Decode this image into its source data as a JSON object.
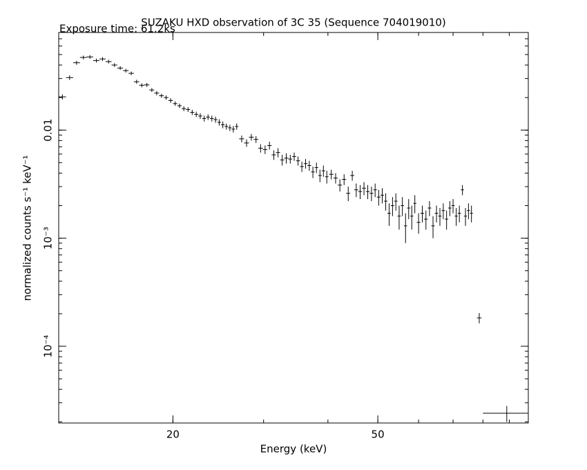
{
  "chart_data": {
    "type": "errorbar",
    "title": "SUZAKU HXD observation of 3C 35 (Sequence 704019010)",
    "subtitle": "Exposure time: 61.2ks",
    "x_label": "Energy (keV)",
    "y_label": "normalized counts s⁻¹ keV⁻¹",
    "x_scale": "log",
    "y_scale": "log",
    "xlim": [
      12,
      98
    ],
    "ylim": [
      1.95e-05,
      0.08
    ],
    "xticks": [
      20,
      50
    ],
    "yticks": [
      0.01,
      {
        "value": 0.001,
        "label": "10⁻³"
      },
      {
        "value": 0.0001,
        "label": "10⁻⁴"
      }
    ],
    "color": "#000000",
    "x": [
      12.2,
      12.6,
      13.0,
      13.4,
      13.8,
      14.2,
      14.6,
      15.0,
      15.4,
      15.8,
      16.2,
      16.6,
      17.0,
      17.4,
      17.8,
      18.2,
      18.6,
      19.0,
      19.4,
      19.8,
      20.2,
      20.6,
      21.0,
      21.4,
      21.8,
      22.2,
      22.6,
      23.0,
      23.4,
      23.8,
      24.2,
      24.6,
      25.0,
      25.4,
      25.8,
      26.2,
      26.6,
      27.2,
      27.8,
      28.4,
      29.0,
      29.6,
      30.2,
      30.8,
      31.4,
      32.0,
      32.6,
      33.2,
      33.8,
      34.4,
      35.0,
      35.6,
      36.2,
      36.8,
      37.4,
      38.0,
      38.6,
      39.2,
      39.8,
      40.6,
      41.4,
      42.2,
      43.0,
      43.8,
      44.6,
      45.4,
      46.2,
      47.0,
      47.8,
      48.6,
      49.4,
      50.2,
      51.0,
      51.8,
      52.6,
      53.4,
      54.2,
      55.0,
      55.8,
      56.6,
      57.4,
      58.2,
      59.0,
      60,
      61,
      62,
      63,
      64,
      65,
      66,
      67,
      68,
      69,
      70,
      71,
      72,
      73,
      74,
      75,
      76,
      78.7,
      89
    ],
    "values": [
      0.0203,
      0.0306,
      0.042,
      0.047,
      0.0475,
      0.044,
      0.0455,
      0.043,
      0.04,
      0.0375,
      0.0355,
      0.0335,
      0.028,
      0.026,
      0.0262,
      0.0235,
      0.022,
      0.0208,
      0.02,
      0.0188,
      0.0176,
      0.0168,
      0.0158,
      0.0155,
      0.0146,
      0.014,
      0.0135,
      0.0128,
      0.0132,
      0.0128,
      0.0125,
      0.0118,
      0.0112,
      0.0108,
      0.0105,
      0.0102,
      0.0108,
      0.0083,
      0.0076,
      0.0086,
      0.0082,
      0.0068,
      0.0066,
      0.0072,
      0.0059,
      0.0062,
      0.0053,
      0.0055,
      0.0054,
      0.0057,
      0.0052,
      0.0046,
      0.0049,
      0.0047,
      0.0041,
      0.0045,
      0.0038,
      0.0042,
      0.0037,
      0.0039,
      0.0036,
      0.0031,
      0.0035,
      0.0026,
      0.0038,
      0.0028,
      0.0027,
      0.0029,
      0.0027,
      0.0026,
      0.0028,
      0.0024,
      0.0025,
      0.0022,
      0.0017,
      0.002,
      0.0022,
      0.0016,
      0.002,
      0.0013,
      0.0019,
      0.0016,
      0.0021,
      0.0014,
      0.0017,
      0.0015,
      0.0019,
      0.0013,
      0.0017,
      0.0016,
      0.0018,
      0.0015,
      0.0019,
      0.002,
      0.0016,
      0.0017,
      0.0028,
      0.0016,
      0.0018,
      0.0017,
      0.000183,
      2.4e-05
    ],
    "xerr": [
      0.2,
      0.2,
      0.2,
      0.2,
      0.2,
      0.2,
      0.2,
      0.2,
      0.2,
      0.2,
      0.2,
      0.2,
      0.2,
      0.2,
      0.2,
      0.2,
      0.2,
      0.2,
      0.2,
      0.2,
      0.2,
      0.2,
      0.2,
      0.2,
      0.2,
      0.2,
      0.2,
      0.2,
      0.2,
      0.2,
      0.2,
      0.2,
      0.2,
      0.2,
      0.2,
      0.2,
      0.2,
      0.3,
      0.3,
      0.3,
      0.3,
      0.3,
      0.3,
      0.3,
      0.3,
      0.3,
      0.3,
      0.3,
      0.3,
      0.3,
      0.3,
      0.3,
      0.3,
      0.3,
      0.3,
      0.3,
      0.3,
      0.3,
      0.3,
      0.4,
      0.4,
      0.4,
      0.4,
      0.4,
      0.4,
      0.4,
      0.4,
      0.4,
      0.4,
      0.4,
      0.4,
      0.4,
      0.4,
      0.4,
      0.4,
      0.4,
      0.4,
      0.4,
      0.4,
      0.4,
      0.4,
      0.4,
      0.4,
      0.5,
      0.5,
      0.5,
      0.5,
      0.5,
      0.5,
      0.5,
      0.5,
      0.5,
      0.5,
      0.5,
      0.5,
      0.5,
      0.5,
      0.5,
      0.5,
      0.5,
      0.8,
      9
    ],
    "yerr": [
      0.0011,
      0.0015,
      0.0018,
      0.0019,
      0.0019,
      0.0018,
      0.0018,
      0.0017,
      0.0016,
      0.0015,
      0.0014,
      0.0013,
      0.0012,
      0.0011,
      0.0011,
      0.001,
      0.001,
      0.0009,
      0.0009,
      0.0009,
      0.0008,
      0.0008,
      0.0008,
      0.0008,
      0.0008,
      0.0008,
      0.0008,
      0.0008,
      0.0008,
      0.0008,
      0.0008,
      0.0008,
      0.0008,
      0.0007,
      0.0007,
      0.0007,
      0.0007,
      0.0006,
      0.0006,
      0.0006,
      0.0006,
      0.0006,
      0.0006,
      0.0006,
      0.0006,
      0.0006,
      0.0006,
      0.0006,
      0.0005,
      0.0005,
      0.0005,
      0.0005,
      0.0005,
      0.0005,
      0.0005,
      0.0005,
      0.0005,
      0.0005,
      0.0005,
      0.0004,
      0.0004,
      0.0004,
      0.0004,
      0.0004,
      0.0004,
      0.0004,
      0.0004,
      0.0004,
      0.0004,
      0.0004,
      0.0004,
      0.0004,
      0.0004,
      0.0004,
      0.0004,
      0.0004,
      0.0004,
      0.0004,
      0.0004,
      0.0004,
      0.0004,
      0.0004,
      0.0004,
      0.0003,
      0.0003,
      0.0003,
      0.0003,
      0.0003,
      0.0003,
      0.0003,
      0.0003,
      0.0003,
      0.0003,
      0.0003,
      0.0003,
      0.0003,
      0.0003,
      0.0003,
      0.0003,
      0.0003,
      2e-05,
      4e-06
    ]
  }
}
